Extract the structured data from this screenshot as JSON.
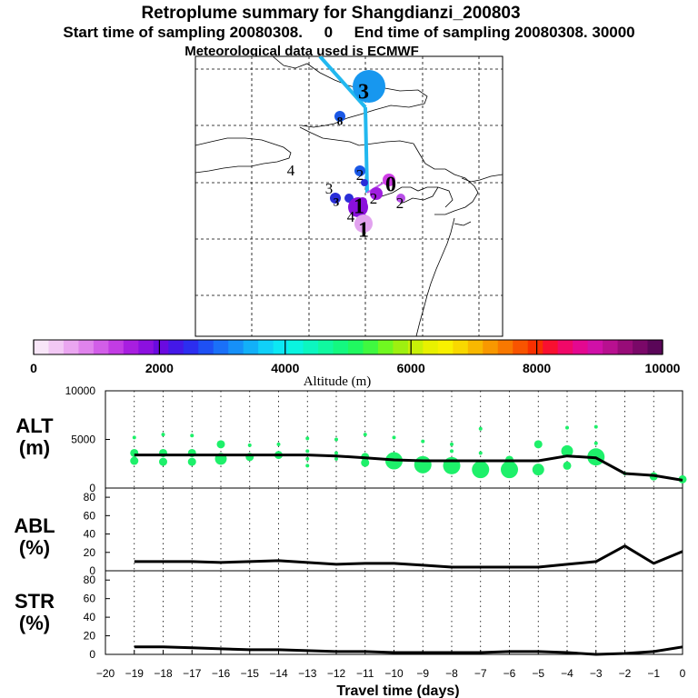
{
  "header": {
    "title": "Retroplume summary for Shangdianzi_200803",
    "start_line": "Start time of sampling 20080308.     0     End time of sampling 20080308. 30000",
    "met_line": "Meteorological data used is ECMWF"
  },
  "map": {
    "labels": [
      {
        "text": "3",
        "kind": "big"
      },
      {
        "text": "8",
        "kind": "small"
      },
      {
        "text": "4",
        "kind": "plain"
      },
      {
        "text": "3",
        "kind": "plain"
      },
      {
        "text": "2",
        "kind": "plain"
      },
      {
        "text": "0",
        "kind": "big"
      },
      {
        "text": "2",
        "kind": "plain"
      },
      {
        "text": "1",
        "kind": "big"
      },
      {
        "text": "4",
        "kind": "plain"
      },
      {
        "text": "2",
        "kind": "plain"
      },
      {
        "text": "1",
        "kind": "big"
      },
      {
        "text": "3",
        "kind": "small"
      }
    ]
  },
  "colorbar": {
    "colors": [
      "#f8e6f8",
      "#f2c8f4",
      "#eaa6f0",
      "#e083ec",
      "#d25ee8",
      "#c23ce4",
      "#a81ee0",
      "#8c10e0",
      "#6a0ae0",
      "#4418e8",
      "#2c2ef0",
      "#1e50f4",
      "#1a70f8",
      "#1690f8",
      "#12b0f8",
      "#10d0f8",
      "#0ce8f4",
      "#0af4e0",
      "#0cf6c0",
      "#10f8a0",
      "#14f880",
      "#20f860",
      "#40f840",
      "#70f820",
      "#9ef010",
      "#c8f008",
      "#e8f000",
      "#f8f000",
      "#f8d800",
      "#f8b800",
      "#f89800",
      "#f87800",
      "#f85400",
      "#f83000",
      "#f81030",
      "#f00868",
      "#e40890",
      "#d010a8",
      "#b81090",
      "#980c78",
      "#7a0868",
      "#5a0658"
    ],
    "range": [
      0,
      10000
    ],
    "tick_labels": [
      "0",
      "2000",
      "4000",
      "6000",
      "8000",
      "10000"
    ],
    "label": "Altitude (m)"
  },
  "panels": {
    "alt": {
      "label": "ALT",
      "unit": "(m)",
      "ylim": [
        0,
        10000
      ],
      "ticks": [
        "10000",
        "5000",
        "0"
      ]
    },
    "abl": {
      "label": "ABL",
      "unit": "(%)",
      "ylim": [
        0,
        90
      ],
      "ticks": [
        "80",
        "60",
        "40",
        "20",
        "0"
      ]
    },
    "str": {
      "label": "STR",
      "unit": "(%)",
      "ylim": [
        0,
        90
      ],
      "ticks": [
        "80",
        "60",
        "40",
        "20",
        "0"
      ]
    }
  },
  "xaxis": {
    "label": "Travel time (days)",
    "xlim": [
      -20,
      0
    ],
    "ticks": [
      "−20",
      "−19",
      "−18",
      "−17",
      "−16",
      "−15",
      "−14",
      "−13",
      "−12",
      "−11",
      "−10",
      "−9",
      "−8",
      "−7",
      "−6",
      "−5",
      "−4",
      "−3",
      "−2",
      "−1",
      "0"
    ]
  },
  "chart_data": [
    {
      "type": "line",
      "title": "Retroplume summary for Shangdianzi_200803",
      "xlabel": "Travel time (days)",
      "ylabel": "ALT (m)",
      "xlim": [
        -20,
        0
      ],
      "ylim": [
        0,
        10000
      ],
      "x": [
        -19,
        -18,
        -17,
        -16,
        -15,
        -14,
        -13,
        -12,
        -11,
        -10,
        -9,
        -8,
        -7,
        -6,
        -5,
        -4,
        -3,
        -2,
        -1,
        0
      ],
      "series": [
        {
          "name": "mean altitude",
          "values": [
            3400,
            3400,
            3400,
            3400,
            3400,
            3400,
            3400,
            3300,
            3100,
            2900,
            2800,
            2800,
            2800,
            2800,
            2800,
            3300,
            3100,
            1500,
            1300,
            800
          ]
        }
      ],
      "clusters": [
        {
          "x": -19,
          "y": 5200,
          "size": 1
        },
        {
          "x": -19,
          "y": 3600,
          "size": 2
        },
        {
          "x": -19,
          "y": 2800,
          "size": 2
        },
        {
          "x": -18,
          "y": 5500,
          "size": 1
        },
        {
          "x": -18,
          "y": 3600,
          "size": 2
        },
        {
          "x": -18,
          "y": 2700,
          "size": 2
        },
        {
          "x": -17,
          "y": 5400,
          "size": 1
        },
        {
          "x": -17,
          "y": 3600,
          "size": 2
        },
        {
          "x": -17,
          "y": 2700,
          "size": 2
        },
        {
          "x": -16,
          "y": 4500,
          "size": 2
        },
        {
          "x": -16,
          "y": 3000,
          "size": 3
        },
        {
          "x": -15,
          "y": 4400,
          "size": 1
        },
        {
          "x": -15,
          "y": 3200,
          "size": 2
        },
        {
          "x": -14,
          "y": 4500,
          "size": 1
        },
        {
          "x": -14,
          "y": 3400,
          "size": 2
        },
        {
          "x": -13,
          "y": 5100,
          "size": 1
        },
        {
          "x": -13,
          "y": 3800,
          "size": 1
        },
        {
          "x": -13,
          "y": 3000,
          "size": 1
        },
        {
          "x": -13,
          "y": 2300,
          "size": 1
        },
        {
          "x": -12,
          "y": 5000,
          "size": 1
        },
        {
          "x": -12,
          "y": 3600,
          "size": 1
        },
        {
          "x": -12,
          "y": 3000,
          "size": 1
        },
        {
          "x": -11,
          "y": 5500,
          "size": 1
        },
        {
          "x": -11,
          "y": 3200,
          "size": 2
        },
        {
          "x": -11,
          "y": 2600,
          "size": 2
        },
        {
          "x": -10,
          "y": 5200,
          "size": 1
        },
        {
          "x": -10,
          "y": 2800,
          "size": 4
        },
        {
          "x": -9,
          "y": 4800,
          "size": 1
        },
        {
          "x": -9,
          "y": 2400,
          "size": 4
        },
        {
          "x": -8,
          "y": 4500,
          "size": 1
        },
        {
          "x": -8,
          "y": 3800,
          "size": 1
        },
        {
          "x": -8,
          "y": 2300,
          "size": 4
        },
        {
          "x": -7,
          "y": 6100,
          "size": 1
        },
        {
          "x": -7,
          "y": 3600,
          "size": 1
        },
        {
          "x": -7,
          "y": 1900,
          "size": 4
        },
        {
          "x": -6,
          "y": 2900,
          "size": 2
        },
        {
          "x": -6,
          "y": 1900,
          "size": 4
        },
        {
          "x": -5,
          "y": 4500,
          "size": 2
        },
        {
          "x": -5,
          "y": 1900,
          "size": 3
        },
        {
          "x": -4,
          "y": 6200,
          "size": 1
        },
        {
          "x": -4,
          "y": 3800,
          "size": 3
        },
        {
          "x": -4,
          "y": 2300,
          "size": 2
        },
        {
          "x": -3,
          "y": 6300,
          "size": 1
        },
        {
          "x": -3,
          "y": 4600,
          "size": 1
        },
        {
          "x": -3,
          "y": 3200,
          "size": 4
        },
        {
          "x": -2,
          "y": 1500,
          "size": 1
        },
        {
          "x": -1,
          "y": 1200,
          "size": 2
        },
        {
          "x": 0,
          "y": 900,
          "size": 2
        }
      ]
    },
    {
      "type": "line",
      "ylabel": "ABL (%)",
      "xlim": [
        -20,
        0
      ],
      "ylim": [
        0,
        90
      ],
      "x": [
        -19,
        -18,
        -17,
        -16,
        -15,
        -14,
        -13,
        -12,
        -11,
        -10,
        -9,
        -8,
        -7,
        -6,
        -5,
        -4,
        -3,
        -2,
        -1,
        0
      ],
      "series": [
        {
          "name": "ABL fraction",
          "values": [
            10,
            10,
            10,
            9,
            10,
            11,
            9,
            7,
            8,
            8,
            6,
            4,
            4,
            4,
            4,
            7,
            10,
            27,
            8,
            21
          ]
        }
      ]
    },
    {
      "type": "line",
      "ylabel": "STR (%)",
      "xlabel": "Travel time (days)",
      "xlim": [
        -20,
        0
      ],
      "ylim": [
        0,
        90
      ],
      "x": [
        -19,
        -18,
        -17,
        -16,
        -15,
        -14,
        -13,
        -12,
        -11,
        -10,
        -9,
        -8,
        -7,
        -6,
        -5,
        -4,
        -3,
        -2,
        -1,
        0
      ],
      "series": [
        {
          "name": "STR fraction",
          "values": [
            8,
            8,
            7,
            6,
            5,
            5,
            4,
            3,
            3,
            2,
            2,
            2,
            2,
            3,
            3,
            2,
            0,
            1,
            3,
            8
          ]
        }
      ]
    }
  ]
}
